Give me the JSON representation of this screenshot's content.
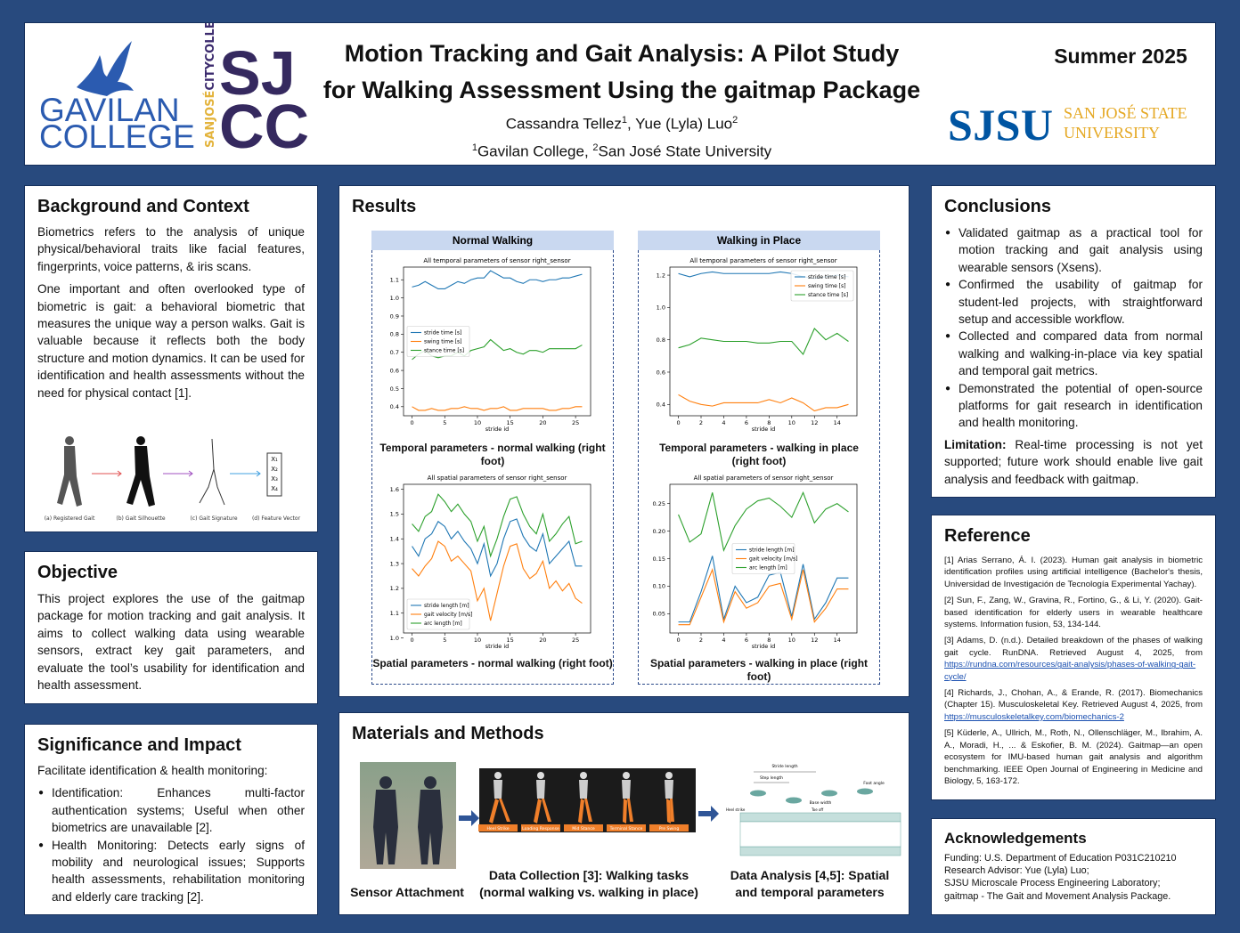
{
  "header": {
    "gavilan": {
      "line1": "GAVILAN",
      "line2": "COLLEGE"
    },
    "sjcc": {
      "side1": "SANJOSÉ",
      "side2": "CITYCOLLEGE",
      "line1": "SJ",
      "line2": "CC"
    },
    "title": [
      "Motion Tracking and Gait Analysis: A Pilot Study",
      "for Walking Assessment Using the gaitmap Package"
    ],
    "authors": [
      "Cassandra Tellez",
      "1",
      ", Yue (Lyla) Luo",
      "2"
    ],
    "affiliations": [
      "1",
      "Gavilan College, ",
      "2",
      "San José State University"
    ],
    "term": "Summer 2025",
    "sjsu": {
      "mark": "SJSU",
      "line1": "SAN JOSÉ STATE",
      "line2": "UNIVERSITY"
    }
  },
  "background": {
    "title": "Background and Context",
    "paragraphs": [
      "Biometrics refers to the analysis of unique physical/behavioral traits like facial features, fingerprints, voice patterns, & iris scans.",
      "One important and often overlooked type of biometric is gait: a behavioral biometric that measures the unique way a person walks. Gait is valuable because it reflects both the body structure and motion dynamics. It can be used for identification and health assessments without the need for physical contact [1]."
    ],
    "figure": {
      "labels": [
        "(a) Registered Gait",
        "(b) Gait Silhouette",
        "(c) Gait Signature",
        "(d) Feature Vector"
      ],
      "vector": [
        "X₁",
        "X₂",
        "X₃",
        "X₄"
      ]
    }
  },
  "objective": {
    "title": "Objective",
    "text": "This project explores the use of the gaitmap package for motion tracking and gait analysis. It aims to collect walking data using wearable sensors, extract key gait parameters, and evaluate the tool’s usability for identification and health assessment."
  },
  "significance": {
    "title": "Significance and Impact",
    "intro": "Facilitate identification & health monitoring:",
    "bullets": [
      "Identification: Enhances multi-factor authentication systems; Useful when other biometrics are unavailable [2].",
      "Health Monitoring: Detects early signs of mobility and neurological issues; Supports health assessments, rehabilitation monitoring and elderly care tracking [2]."
    ]
  },
  "results": {
    "title": "Results",
    "panels": [
      {
        "header": "Normal Walking",
        "charts": [
          {
            "type": "line",
            "title": "All temporal parameters of sensor right_sensor",
            "xlabel": "stride id",
            "x": [
              0,
              1,
              2,
              3,
              4,
              5,
              6,
              7,
              8,
              9,
              10,
              11,
              12,
              13,
              14,
              15,
              16,
              17,
              18,
              19,
              20,
              21,
              22,
              23,
              24,
              25,
              26
            ],
            "xlim": [
              -1.3,
              27.3
            ],
            "xticks": [
              0,
              5,
              10,
              15,
              20,
              25
            ],
            "ylim": [
              0.35,
              1.17
            ],
            "yticks": [
              0.4,
              0.5,
              0.6,
              0.7,
              0.8,
              0.9,
              {
                "value": 1,
                "label": "1.0"
              },
              1.1
            ],
            "legend": "center left",
            "series": [
              {
                "name": "stride time [s]",
                "color": "#1f77b4",
                "values": [
                  1.06,
                  1.07,
                  1.09,
                  1.07,
                  1.05,
                  1.05,
                  1.07,
                  1.09,
                  1.08,
                  1.1,
                  1.11,
                  1.11,
                  1.15,
                  1.13,
                  1.11,
                  1.11,
                  1.09,
                  1.08,
                  1.1,
                  1.1,
                  1.09,
                  1.1,
                  1.1,
                  1.11,
                  1.11,
                  1.12,
                  1.13
                ]
              },
              {
                "name": "swing time [s]",
                "color": "#ff7f0e",
                "values": [
                  0.4,
                  0.38,
                  0.38,
                  0.39,
                  0.38,
                  0.38,
                  0.39,
                  0.39,
                  0.4,
                  0.39,
                  0.39,
                  0.38,
                  0.39,
                  0.39,
                  0.4,
                  0.38,
                  0.38,
                  0.39,
                  0.39,
                  0.39,
                  0.39,
                  0.38,
                  0.38,
                  0.39,
                  0.39,
                  0.4,
                  0.4
                ]
              },
              {
                "name": "stance time [s]",
                "color": "#2ca02c",
                "values": [
                  0.66,
                  0.69,
                  0.71,
                  0.68,
                  0.67,
                  0.68,
                  0.68,
                  0.7,
                  0.68,
                  0.71,
                  0.72,
                  0.73,
                  0.77,
                  0.74,
                  0.71,
                  0.72,
                  0.7,
                  0.69,
                  0.71,
                  0.71,
                  0.7,
                  0.72,
                  0.72,
                  0.72,
                  0.72,
                  0.72,
                  0.74
                ]
              }
            ],
            "caption": "Temporal parameters - normal walking (right foot)"
          },
          {
            "type": "line",
            "title": "All spatial parameters of sensor right_sensor",
            "xlabel": "stride id",
            "x": [
              0,
              1,
              2,
              3,
              4,
              5,
              6,
              7,
              8,
              9,
              10,
              11,
              12,
              13,
              14,
              15,
              16,
              17,
              18,
              19,
              20,
              21,
              22,
              23,
              24,
              25,
              26
            ],
            "xlim": [
              -1.3,
              27.3
            ],
            "xticks": [
              0,
              5,
              10,
              15,
              20,
              25
            ],
            "ylim": [
              1.02,
              1.62
            ],
            "yticks": [
              {
                "value": 1,
                "label": "1.0"
              },
              1.1,
              1.2,
              1.3,
              1.4,
              1.5,
              1.6
            ],
            "legend": "lower left",
            "series": [
              {
                "name": "stride length [m]",
                "color": "#1f77b4",
                "values": [
                  1.37,
                  1.33,
                  1.4,
                  1.42,
                  1.47,
                  1.45,
                  1.4,
                  1.43,
                  1.39,
                  1.36,
                  1.3,
                  1.38,
                  1.25,
                  1.3,
                  1.4,
                  1.47,
                  1.48,
                  1.41,
                  1.37,
                  1.35,
                  1.42,
                  1.3,
                  1.33,
                  1.36,
                  1.39,
                  1.29,
                  1.29
                ]
              },
              {
                "name": "gait velocity [m/s]",
                "color": "#ff7f0e",
                "values": [
                  1.28,
                  1.25,
                  1.29,
                  1.32,
                  1.39,
                  1.37,
                  1.31,
                  1.33,
                  1.3,
                  1.27,
                  1.15,
                  1.2,
                  1.07,
                  1.18,
                  1.29,
                  1.37,
                  1.38,
                  1.28,
                  1.24,
                  1.26,
                  1.31,
                  1.2,
                  1.23,
                  1.19,
                  1.22,
                  1.16,
                  1.14
                ]
              },
              {
                "name": "arc length [m]",
                "color": "#2ca02c",
                "values": [
                  1.46,
                  1.43,
                  1.49,
                  1.51,
                  1.58,
                  1.55,
                  1.51,
                  1.54,
                  1.5,
                  1.47,
                  1.39,
                  1.45,
                  1.33,
                  1.4,
                  1.49,
                  1.56,
                  1.57,
                  1.5,
                  1.45,
                  1.42,
                  1.5,
                  1.39,
                  1.42,
                  1.46,
                  1.49,
                  1.38,
                  1.39
                ]
              }
            ],
            "caption": "Spatial parameters - normal walking (right foot)"
          }
        ]
      },
      {
        "header": "Walking in Place",
        "charts": [
          {
            "type": "line",
            "title": "All temporal parameters of sensor right_sensor",
            "xlabel": "stride id",
            "x": [
              0,
              1,
              2,
              3,
              4,
              5,
              6,
              7,
              8,
              9,
              10,
              11,
              12,
              13,
              14,
              15
            ],
            "xlim": [
              -0.75,
              15.75
            ],
            "xticks": [
              0,
              2,
              4,
              6,
              8,
              10,
              12,
              14
            ],
            "ylim": [
              0.33,
              1.25
            ],
            "yticks": [
              0.4,
              0.6,
              0.8,
              {
                "value": 1,
                "label": "1.0"
              },
              1.2
            ],
            "legend": "upper right",
            "series": [
              {
                "name": "stride time [s]",
                "color": "#1f77b4",
                "values": [
                  1.21,
                  1.19,
                  1.21,
                  1.22,
                  1.21,
                  1.21,
                  1.21,
                  1.21,
                  1.21,
                  1.22,
                  1.21,
                  1.19,
                  1.18,
                  1.19,
                  1.2,
                  1.19
                ]
              },
              {
                "name": "swing time [s]",
                "color": "#ff7f0e",
                "values": [
                  0.46,
                  0.42,
                  0.4,
                  0.39,
                  0.41,
                  0.41,
                  0.41,
                  0.41,
                  0.43,
                  0.41,
                  0.44,
                  0.41,
                  0.36,
                  0.38,
                  0.38,
                  0.4
                ]
              },
              {
                "name": "stance time [s]",
                "color": "#2ca02c",
                "values": [
                  0.75,
                  0.77,
                  0.81,
                  0.8,
                  0.79,
                  0.79,
                  0.79,
                  0.78,
                  0.78,
                  0.79,
                  0.79,
                  0.71,
                  0.87,
                  0.8,
                  0.84,
                  0.79
                ]
              }
            ],
            "caption": "Temporal parameters - walking in place  (right foot)"
          },
          {
            "type": "line",
            "title": "All spatial parameters of sensor right_sensor",
            "xlabel": "stride id",
            "x": [
              0,
              1,
              2,
              3,
              4,
              5,
              6,
              7,
              8,
              9,
              10,
              11,
              12,
              13,
              14,
              15
            ],
            "xlim": [
              -0.75,
              15.75
            ],
            "xticks": [
              0,
              2,
              4,
              6,
              8,
              10,
              12,
              14
            ],
            "ylim": [
              0.015,
              0.285
            ],
            "yticks": [
              0.05,
              {
                "value": 0.1,
                "label": "0.10"
              },
              0.15,
              {
                "value": 0.2,
                "label": "0.20"
              },
              0.25
            ],
            "legend": "center",
            "series": [
              {
                "name": "stride length [m]",
                "color": "#1f77b4",
                "values": [
                  0.035,
                  0.035,
                  0.09,
                  0.155,
                  0.04,
                  0.1,
                  0.07,
                  0.08,
                  0.12,
                  0.125,
                  0.045,
                  0.14,
                  0.04,
                  0.07,
                  0.115,
                  0.115
                ]
              },
              {
                "name": "gait velocity [m/s]",
                "color": "#ff7f0e",
                "values": [
                  0.03,
                  0.03,
                  0.08,
                  0.13,
                  0.035,
                  0.09,
                  0.06,
                  0.07,
                  0.1,
                  0.105,
                  0.04,
                  0.13,
                  0.035,
                  0.06,
                  0.095,
                  0.095
                ]
              },
              {
                "name": "arc length [m]",
                "color": "#2ca02c",
                "values": [
                  0.23,
                  0.18,
                  0.195,
                  0.27,
                  0.165,
                  0.21,
                  0.24,
                  0.255,
                  0.26,
                  0.245,
                  0.225,
                  0.27,
                  0.215,
                  0.24,
                  0.25,
                  0.235
                ]
              }
            ],
            "caption": "Spatial parameters - walking in place (right foot)"
          }
        ]
      }
    ]
  },
  "methods": {
    "title": "Materials and Methods",
    "phases": [
      "Heel Strike",
      "Loading Response",
      "Mid Stance",
      "Terminal Stance",
      "Pre Swing"
    ],
    "diagram": [
      "Stride length",
      "Step length",
      "Base width",
      "Foot angle",
      "Heel strike",
      "Toe off"
    ],
    "captions": [
      [
        "Sensor Attachment"
      ],
      [
        "Data Collection [3]: Walking tasks",
        "(normal walking vs. walking in place)"
      ],
      [
        "Data Analysis [4,5]: Spatial",
        "and temporal parameters"
      ]
    ]
  },
  "conclusions": {
    "title": "Conclusions",
    "bullets": [
      "Validated gaitmap as a practical tool for motion tracking and gait analysis using wearable sensors (Xsens).",
      "Confirmed the usability of gaitmap for student-led projects, with straightforward setup and accessible workflow.",
      "Collected and compared data from normal walking and walking-in-place via key spatial and temporal gait metrics.",
      "Demonstrated the potential of open-source platforms for gait research in identification and health monitoring."
    ],
    "limitation": {
      "label": "Limitation:",
      "text": " Real-time processing is not yet supported; future work should enable live gait analysis and feedback with gaitmap."
    }
  },
  "reference": {
    "title": "Reference",
    "items": [
      {
        "text": "[1] Arias Serrano, Á. I. (2023). Human gait analysis in biometric identification profiles using artificial intelligence (Bachelor's thesis, Universidad de Investigación de Tecnología Experimental Yachay)."
      },
      {
        "text": "[2] Sun, F., Zang, W., Gravina, R., Fortino, G., & Li, Y. (2020). Gait-based identification for elderly users in wearable healthcare systems. Information fusion, 53, 134-144."
      },
      {
        "text": "[3] Adams, D. (n.d.). Detailed breakdown of the phases of walking gait cycle. RunDNA. Retrieved August 4, 2025, from ",
        "link": "https://rundna.com/resources/gait-analysis/phases-of-walking-gait-cycle/"
      },
      {
        "text": "[4] Richards, J., Chohan, A., & Erande, R. (2017). Biomechanics (Chapter 15). Musculoskeletal Key. Retrieved August 4, 2025, from ",
        "link": "https://musculoskeletalkey.com/biomechanics-2"
      },
      {
        "text": "[5] Küderle, A., Ullrich, M., Roth, N., Ollenschläger, M., Ibrahim, A. A., Moradi, H., ... & Eskofier, B. M. (2024). Gaitmap—an open ecosystem for IMU-based human gait analysis and algorithm benchmarking. IEEE Open Journal of Engineering in Medicine and Biology, 5, 163-172."
      }
    ]
  },
  "acknowledgements": {
    "title": "Acknowledgements",
    "lines": [
      "Funding:  U.S. Department of Education P031C210210",
      "Research Advisor:  Yue (Lyla) Luo;",
      "SJSU Microscale Process Engineering Laboratory;",
      "gaitmap - The Gait and Movement Analysis Package."
    ]
  }
}
